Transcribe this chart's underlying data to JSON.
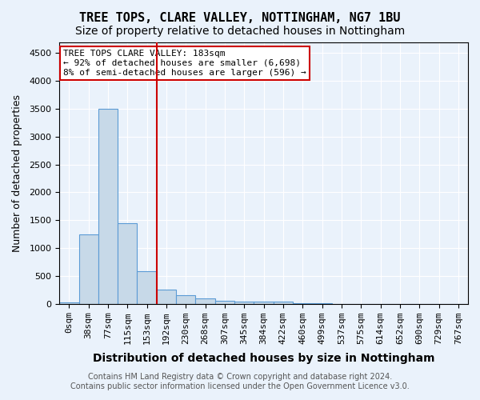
{
  "title": "TREE TOPS, CLARE VALLEY, NOTTINGHAM, NG7 1BU",
  "subtitle": "Size of property relative to detached houses in Nottingham",
  "xlabel": "Distribution of detached houses by size in Nottingham",
  "ylabel": "Number of detached properties",
  "bin_labels": [
    "0sqm",
    "38sqm",
    "77sqm",
    "115sqm",
    "153sqm",
    "192sqm",
    "230sqm",
    "268sqm",
    "307sqm",
    "345sqm",
    "384sqm",
    "422sqm",
    "460sqm",
    "499sqm",
    "537sqm",
    "575sqm",
    "614sqm",
    "652sqm",
    "690sqm",
    "729sqm",
    "767sqm"
  ],
  "bar_values": [
    30,
    1250,
    3500,
    1450,
    580,
    250,
    150,
    90,
    55,
    40,
    40,
    40,
    5,
    5,
    0,
    0,
    0,
    0,
    0,
    0,
    0
  ],
  "bar_color": "#c7d9e8",
  "bar_edge_color": "#5b9bd5",
  "vline_x_index": 5,
  "vline_color": "#cc0000",
  "annotation_title": "TREE TOPS CLARE VALLEY: 183sqm",
  "annotation_line1": "← 92% of detached houses are smaller (6,698)",
  "annotation_line2": "8% of semi-detached houses are larger (596) →",
  "annotation_box_color": "#ffffff",
  "annotation_box_edge_color": "#cc0000",
  "ylim": [
    0,
    4700
  ],
  "yticks": [
    0,
    500,
    1000,
    1500,
    2000,
    2500,
    3000,
    3500,
    4000,
    4500
  ],
  "footer_line1": "Contains HM Land Registry data © Crown copyright and database right 2024.",
  "footer_line2": "Contains public sector information licensed under the Open Government Licence v3.0.",
  "background_color": "#eaf2fb",
  "plot_bg_color": "#eaf2fb",
  "grid_color": "#ffffff",
  "title_fontsize": 11,
  "subtitle_fontsize": 10,
  "xlabel_fontsize": 10,
  "ylabel_fontsize": 9,
  "tick_fontsize": 8,
  "annotation_fontsize": 8,
  "footer_fontsize": 7
}
